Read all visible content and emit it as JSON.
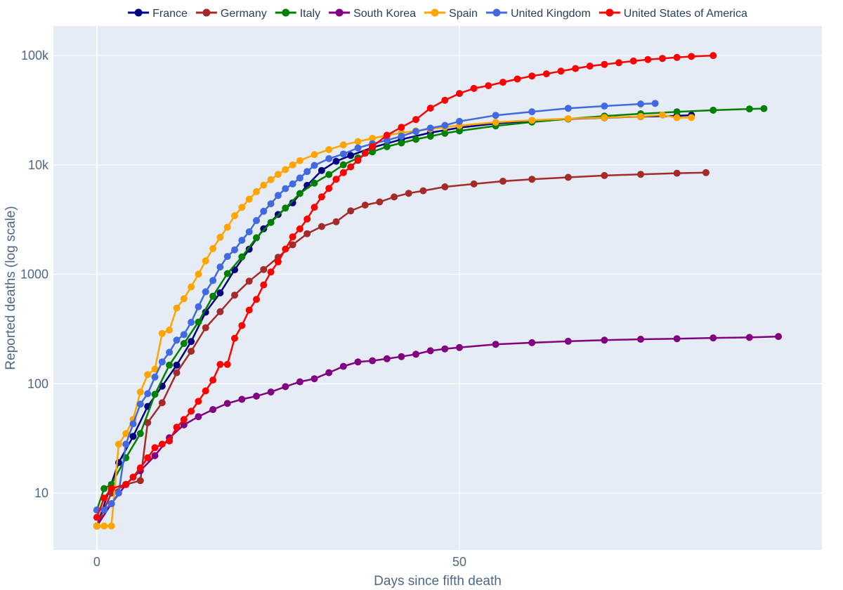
{
  "chart_data": {
    "type": "line",
    "xlabel": "Days since fifth death",
    "ylabel": "Reported deaths (log scale)",
    "log_y": true,
    "x_range": [
      -6,
      100
    ],
    "y_range_log10": [
      0.48,
      5.27
    ],
    "x_ticks": [
      0,
      50
    ],
    "x_tick_labels": [
      "0",
      "50"
    ],
    "y_ticks": [
      10,
      100,
      1000,
      10000,
      100000
    ],
    "y_tick_labels": [
      "10",
      "100",
      "1000",
      "10k",
      "100k"
    ],
    "grid": true,
    "legend_position": "top",
    "series": [
      {
        "name": "France",
        "color": "#000080",
        "points": [
          [
            0,
            5
          ],
          [
            3,
            19
          ],
          [
            5,
            33
          ],
          [
            7,
            62
          ],
          [
            9,
            95
          ],
          [
            11,
            148
          ],
          [
            13,
            243
          ],
          [
            15,
            450
          ],
          [
            17,
            676
          ],
          [
            19,
            1100
          ],
          [
            21,
            1696
          ],
          [
            23,
            2606
          ],
          [
            25,
            3523
          ],
          [
            27,
            4503
          ],
          [
            29,
            6500
          ],
          [
            31,
            8900
          ],
          [
            33,
            10800
          ],
          [
            35,
            12200
          ],
          [
            38,
            14400
          ],
          [
            42,
            17100
          ],
          [
            46,
            19700
          ],
          [
            50,
            21900
          ],
          [
            55,
            23900
          ],
          [
            60,
            25300
          ],
          [
            65,
            26300
          ],
          [
            70,
            27000
          ],
          [
            75,
            27600
          ],
          [
            80,
            28100
          ],
          [
            82,
            28500
          ]
        ]
      },
      {
        "name": "Germany",
        "color": "#a52a2a",
        "points": [
          [
            0,
            5
          ],
          [
            2,
            10
          ],
          [
            4,
            12
          ],
          [
            6,
            13
          ],
          [
            7,
            44
          ],
          [
            9,
            67
          ],
          [
            11,
            126
          ],
          [
            13,
            198
          ],
          [
            15,
            325
          ],
          [
            17,
            455
          ],
          [
            19,
            645
          ],
          [
            21,
            866
          ],
          [
            23,
            1107
          ],
          [
            25,
            1434
          ],
          [
            27,
            1861
          ],
          [
            29,
            2350
          ],
          [
            31,
            2736
          ],
          [
            33,
            3022
          ],
          [
            35,
            3804
          ],
          [
            37,
            4294
          ],
          [
            39,
            4586
          ],
          [
            41,
            5094
          ],
          [
            43,
            5500
          ],
          [
            45,
            5800
          ],
          [
            48,
            6300
          ],
          [
            52,
            6700
          ],
          [
            56,
            7100
          ],
          [
            60,
            7400
          ],
          [
            65,
            7700
          ],
          [
            70,
            8000
          ],
          [
            75,
            8200
          ],
          [
            80,
            8400
          ],
          [
            84,
            8500
          ]
        ]
      },
      {
        "name": "Italy",
        "color": "#008000",
        "points": [
          [
            0,
            7
          ],
          [
            1,
            11
          ],
          [
            2,
            12
          ],
          [
            4,
            21
          ],
          [
            6,
            35
          ],
          [
            8,
            80
          ],
          [
            10,
            148
          ],
          [
            12,
            233
          ],
          [
            14,
            366
          ],
          [
            16,
            631
          ],
          [
            18,
            1016
          ],
          [
            20,
            1441
          ],
          [
            22,
            2158
          ],
          [
            24,
            2978
          ],
          [
            26,
            4032
          ],
          [
            28,
            5476
          ],
          [
            30,
            6820
          ],
          [
            32,
            8165
          ],
          [
            34,
            10023
          ],
          [
            36,
            11591
          ],
          [
            38,
            13155
          ],
          [
            40,
            14681
          ],
          [
            42,
            15887
          ],
          [
            44,
            17127
          ],
          [
            46,
            18279
          ],
          [
            48,
            19468
          ],
          [
            50,
            20465
          ],
          [
            55,
            22745
          ],
          [
            60,
            24648
          ],
          [
            65,
            26384
          ],
          [
            70,
            27967
          ],
          [
            75,
            29315
          ],
          [
            80,
            30560
          ],
          [
            85,
            31610
          ],
          [
            90,
            32486
          ],
          [
            92,
            32735
          ]
        ]
      },
      {
        "name": "South Korea",
        "color": "#800080",
        "points": [
          [
            0,
            5
          ],
          [
            2,
            8
          ],
          [
            4,
            12
          ],
          [
            6,
            16
          ],
          [
            8,
            22
          ],
          [
            10,
            32
          ],
          [
            12,
            42
          ],
          [
            14,
            50
          ],
          [
            16,
            58
          ],
          [
            18,
            66
          ],
          [
            20,
            72
          ],
          [
            22,
            77
          ],
          [
            24,
            84
          ],
          [
            26,
            94
          ],
          [
            28,
            104
          ],
          [
            30,
            111
          ],
          [
            32,
            126
          ],
          [
            34,
            144
          ],
          [
            36,
            158
          ],
          [
            38,
            162
          ],
          [
            40,
            169
          ],
          [
            42,
            177
          ],
          [
            44,
            186
          ],
          [
            46,
            200
          ],
          [
            48,
            208
          ],
          [
            50,
            214
          ],
          [
            55,
            229
          ],
          [
            60,
            237
          ],
          [
            65,
            244
          ],
          [
            70,
            250
          ],
          [
            75,
            255
          ],
          [
            80,
            258
          ],
          [
            85,
            262
          ],
          [
            90,
            265
          ],
          [
            94,
            270
          ]
        ]
      },
      {
        "name": "Spain",
        "color": "#ffa500",
        "points": [
          [
            0,
            5
          ],
          [
            1,
            5
          ],
          [
            2,
            5
          ],
          [
            3,
            28
          ],
          [
            4,
            35
          ],
          [
            5,
            47
          ],
          [
            6,
            84
          ],
          [
            7,
            121
          ],
          [
            8,
            136
          ],
          [
            9,
            288
          ],
          [
            10,
            309
          ],
          [
            11,
            491
          ],
          [
            12,
            598
          ],
          [
            13,
            767
          ],
          [
            14,
            1002
          ],
          [
            15,
            1326
          ],
          [
            16,
            1720
          ],
          [
            17,
            2182
          ],
          [
            18,
            2696
          ],
          [
            19,
            3434
          ],
          [
            20,
            4089
          ],
          [
            21,
            4858
          ],
          [
            22,
            5690
          ],
          [
            23,
            6528
          ],
          [
            24,
            7340
          ],
          [
            25,
            8189
          ],
          [
            26,
            9053
          ],
          [
            27,
            10003
          ],
          [
            28,
            10935
          ],
          [
            30,
            12418
          ],
          [
            32,
            13798
          ],
          [
            34,
            15238
          ],
          [
            36,
            16353
          ],
          [
            38,
            17489
          ],
          [
            40,
            18579
          ],
          [
            42,
            19613
          ],
          [
            44,
            20453
          ],
          [
            46,
            21282
          ],
          [
            48,
            22157
          ],
          [
            50,
            22902
          ],
          [
            55,
            24543
          ],
          [
            60,
            25613
          ],
          [
            65,
            26478
          ],
          [
            70,
            27104
          ],
          [
            75,
            27709
          ],
          [
            78,
            28628
          ],
          [
            80,
            27000
          ],
          [
            82,
            27100
          ]
        ]
      },
      {
        "name": "United Kingdom",
        "color": "#4169e1",
        "points": [
          [
            0,
            7
          ],
          [
            1,
            7
          ],
          [
            2,
            8
          ],
          [
            3,
            10
          ],
          [
            4,
            28
          ],
          [
            5,
            43
          ],
          [
            6,
            65
          ],
          [
            7,
            81
          ],
          [
            8,
            115
          ],
          [
            9,
            158
          ],
          [
            10,
            194
          ],
          [
            11,
            250
          ],
          [
            12,
            281
          ],
          [
            13,
            364
          ],
          [
            14,
            505
          ],
          [
            15,
            692
          ],
          [
            16,
            877
          ],
          [
            17,
            1167
          ],
          [
            18,
            1457
          ],
          [
            19,
            1673
          ],
          [
            20,
            2047
          ],
          [
            21,
            2446
          ],
          [
            22,
            3101
          ],
          [
            23,
            3768
          ],
          [
            24,
            4414
          ],
          [
            25,
            5262
          ],
          [
            26,
            6062
          ],
          [
            27,
            6693
          ],
          [
            28,
            7600
          ],
          [
            29,
            8700
          ],
          [
            30,
            9898
          ],
          [
            32,
            11400
          ],
          [
            34,
            12600
          ],
          [
            36,
            14300
          ],
          [
            38,
            15600
          ],
          [
            40,
            16800
          ],
          [
            42,
            18300
          ],
          [
            44,
            20200
          ],
          [
            46,
            21700
          ],
          [
            48,
            23000
          ],
          [
            50,
            25000
          ],
          [
            55,
            28400
          ],
          [
            60,
            30600
          ],
          [
            65,
            32900
          ],
          [
            70,
            34500
          ],
          [
            75,
            36100
          ],
          [
            77,
            36500
          ]
        ]
      },
      {
        "name": "United States of America",
        "color": "#ff0000",
        "points": [
          [
            0,
            6
          ],
          [
            1,
            9
          ],
          [
            2,
            11
          ],
          [
            4,
            12
          ],
          [
            5,
            14
          ],
          [
            6,
            17
          ],
          [
            7,
            21
          ],
          [
            8,
            26
          ],
          [
            9,
            28
          ],
          [
            10,
            30
          ],
          [
            11,
            40
          ],
          [
            12,
            47
          ],
          [
            13,
            56
          ],
          [
            14,
            69
          ],
          [
            15,
            86
          ],
          [
            16,
            108
          ],
          [
            17,
            150
          ],
          [
            18,
            150
          ],
          [
            19,
            260
          ],
          [
            20,
            340
          ],
          [
            21,
            471
          ],
          [
            22,
            590
          ],
          [
            23,
            800
          ],
          [
            24,
            1050
          ],
          [
            25,
            1300
          ],
          [
            26,
            1700
          ],
          [
            27,
            2200
          ],
          [
            28,
            2600
          ],
          [
            29,
            3200
          ],
          [
            30,
            4100
          ],
          [
            31,
            5100
          ],
          [
            32,
            6100
          ],
          [
            33,
            7400
          ],
          [
            34,
            8500
          ],
          [
            35,
            9600
          ],
          [
            36,
            11000
          ],
          [
            37,
            12800
          ],
          [
            38,
            14700
          ],
          [
            40,
            18700
          ],
          [
            42,
            22100
          ],
          [
            44,
            26000
          ],
          [
            46,
            33000
          ],
          [
            48,
            39000
          ],
          [
            50,
            45000
          ],
          [
            52,
            50000
          ],
          [
            54,
            53000
          ],
          [
            56,
            57000
          ],
          [
            58,
            61000
          ],
          [
            60,
            65000
          ],
          [
            62,
            68000
          ],
          [
            64,
            72000
          ],
          [
            66,
            76000
          ],
          [
            68,
            80000
          ],
          [
            70,
            83000
          ],
          [
            72,
            86000
          ],
          [
            74,
            89000
          ],
          [
            76,
            92000
          ],
          [
            78,
            94000
          ],
          [
            80,
            96000
          ],
          [
            82,
            98000
          ],
          [
            85,
            100000
          ]
        ]
      }
    ]
  }
}
